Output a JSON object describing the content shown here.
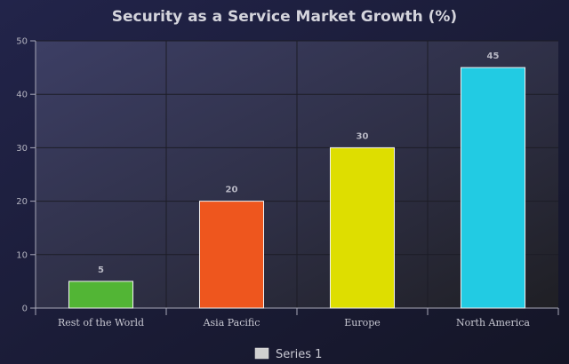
{
  "chart_data": {
    "type": "bar",
    "title": "Security as a Service Market Growth (%)",
    "categories": [
      "Rest of the World",
      "Asia Pacific",
      "Europe",
      "North America"
    ],
    "series": [
      {
        "name": "Series 1",
        "values": [
          5,
          20,
          30,
          45
        ],
        "colors": [
          "#52b535",
          "#ee561e",
          "#dede00",
          "#22cbe3"
        ]
      }
    ],
    "xlabel": "",
    "ylabel": "",
    "ylim": [
      0,
      50
    ],
    "yticks": [
      0,
      10,
      20,
      30,
      40,
      50
    ],
    "grid": true,
    "legend": "bottom-center"
  }
}
